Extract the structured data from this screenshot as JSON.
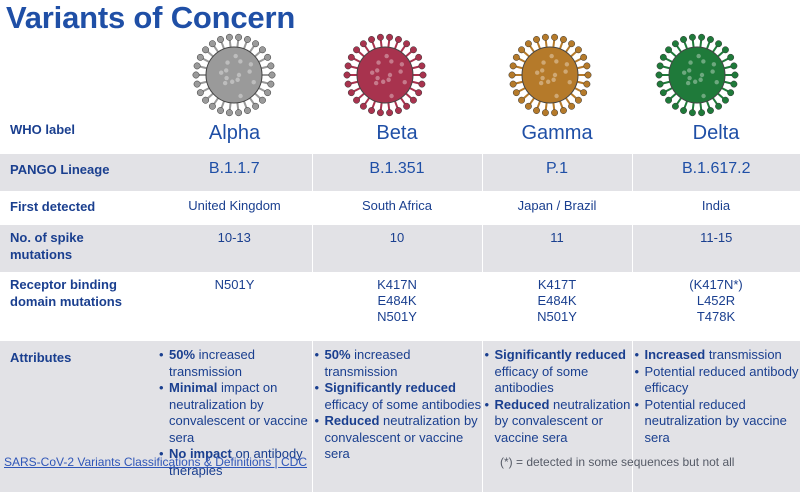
{
  "title": "Variants of Concern",
  "variants": [
    {
      "who": "Alpha",
      "pango": "B.1.1.7",
      "first": "United Kingdom",
      "spike": "10-13",
      "rbd": [
        "N501Y"
      ],
      "color": "#9a9a9a"
    },
    {
      "who": "Beta",
      "pango": "B.1.351",
      "first": "South Africa",
      "spike": "10",
      "rbd": [
        "K417N",
        "E484K",
        "N501Y"
      ],
      "color": "#a8334e"
    },
    {
      "who": "Gamma",
      "pango": "P.1",
      "first": "Japan / Brazil",
      "spike": "11",
      "rbd": [
        "K417T",
        "E484K",
        "N501Y"
      ],
      "color": "#b57a2a"
    },
    {
      "who": "Delta",
      "pango": "B.1.617.2",
      "first": "India",
      "spike": "11-15",
      "rbd": [
        "(K417N*)",
        "L452R",
        "T478K"
      ],
      "color": "#1f7a3a"
    }
  ],
  "row_labels": {
    "who": "WHO label",
    "pango": "PANGO Lineage",
    "first": "First detected",
    "spike_l1": "No. of spike",
    "spike_l2": "mutations",
    "rbd_l1": "Receptor binding",
    "rbd_l2": "domain mutations",
    "attributes": "Attributes"
  },
  "attributes": {
    "alpha": [
      {
        "b": "50%",
        "t": " increased transmission"
      },
      {
        "b": "Minimal",
        "t": "  impact on neutralization by convalescent or vaccine sera"
      },
      {
        "b": "No impact",
        "t": " on antibody therapies"
      }
    ],
    "beta": [
      {
        "b": "50%",
        "t": " increased transmission"
      },
      {
        "b": "Significantly reduced",
        "t": " efficacy of some antibodies"
      },
      {
        "b": "Reduced",
        "t": " neutralization by convalescent or vaccine sera"
      }
    ],
    "gamma": [
      {
        "b": "Significantly reduced",
        "t": " efficacy of some antibodies"
      },
      {
        "b": "Reduced",
        "t": " neutralization by convalescent or vaccine sera"
      }
    ],
    "delta": [
      {
        "b": "Increased",
        "t": " transmission"
      },
      {
        "b": "",
        "t": "Potential reduced antibody efficacy"
      },
      {
        "b": "",
        "t": "Potential reduced neutralization by vaccine sera"
      }
    ]
  },
  "footer": {
    "link": "SARS-CoV-2 Variants Classifications & Definitions | CDC",
    "note": "(*) = detected in some sequences but not all"
  }
}
